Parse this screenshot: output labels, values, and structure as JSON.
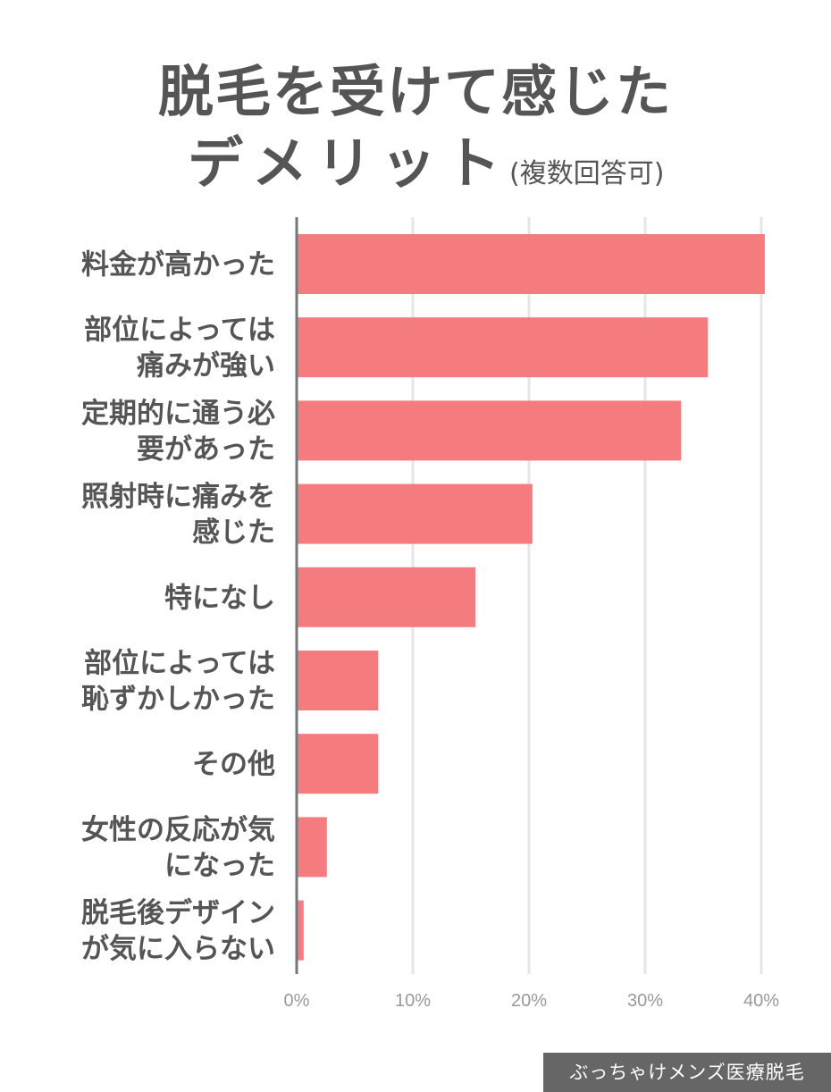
{
  "title": {
    "line1": "脱毛を受けて感じた",
    "line2": "デメリット",
    "note": "(複数回答可)"
  },
  "watermark": "ぶっちゃけメンズ医療脱毛",
  "chart_data": {
    "type": "bar",
    "orientation": "horizontal",
    "categories": [
      [
        "料金が高かった"
      ],
      [
        "部位によっては",
        "痛みが強い"
      ],
      [
        "定期的に通う必",
        "要があった"
      ],
      [
        "照射時に痛みを",
        "感じた"
      ],
      [
        "特になし"
      ],
      [
        "部位によっては",
        "恥ずかしかった"
      ],
      [
        "その他"
      ],
      [
        "女性の反応が気",
        "になった"
      ],
      [
        "脱毛後デザイン",
        "が気に入らない"
      ]
    ],
    "values": [
      40.3,
      35.4,
      33.1,
      20.3,
      15.4,
      7.0,
      7.0,
      2.6,
      0.6
    ],
    "xlim": [
      0,
      40
    ],
    "ticks": [
      0,
      10,
      20,
      30,
      40
    ],
    "tick_labels": [
      "0%",
      "10%",
      "20%",
      "30%",
      "40%"
    ],
    "grid": true,
    "bar_color": "#f47c7f",
    "grid_color": "#e6e6e6",
    "axis_color": "#777777"
  }
}
